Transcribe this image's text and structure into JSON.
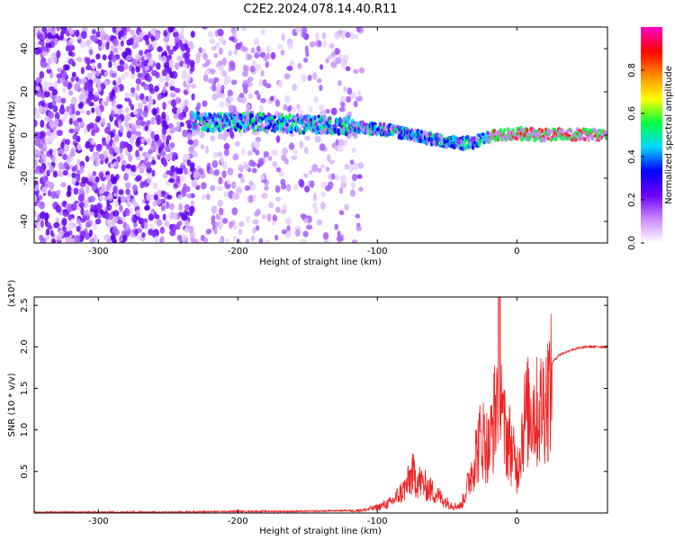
{
  "figure": {
    "title": "C2E2.2024.078.14.40.R11"
  },
  "chart_data": [
    {
      "type": "heatmap",
      "xlabel": "Height of straight line (km)",
      "ylabel": "Frequency (Hz)",
      "xlim": [
        -346,
        65
      ],
      "ylim": [
        -50,
        50
      ],
      "xticks": [
        -300,
        -200,
        -100,
        0
      ],
      "yticks": [
        -40,
        -20,
        0,
        20,
        40
      ],
      "ridge": {
        "x": [
          -230,
          -200,
          -150,
          -120,
          -90,
          -60,
          -40,
          -30,
          -20,
          -10,
          0,
          20,
          65
        ],
        "y": [
          6,
          6,
          5,
          4,
          2,
          -2,
          -4,
          -3,
          -1,
          0,
          0.5,
          0,
          0
        ]
      },
      "colorbar": {
        "label": "Normalized spectral amplitude",
        "range": [
          0.0,
          1.0
        ],
        "ticks": [
          0.0,
          0.2,
          0.4,
          0.6,
          0.8
        ],
        "tick_labels": [
          "0.0",
          "0.2",
          "0.4",
          "0.6",
          "0.8"
        ],
        "colors": [
          "#ffffff",
          "#cc88ff",
          "#6a00ff",
          "#0000ff",
          "#00d8ff",
          "#00ff40",
          "#ffff00",
          "#ff8800",
          "#ff0000",
          "#ff00cc"
        ]
      }
    },
    {
      "type": "line",
      "xlabel": "Height of straight line (km)",
      "ylabel": "SNR (10 * v/v)",
      "y_multiplier": "(x10⁴)",
      "xlim": [
        -346,
        65
      ],
      "ylim": [
        0,
        2.6
      ],
      "xticks": [
        -300,
        -200,
        -100,
        0
      ],
      "yticks": [
        0.5,
        1.0,
        1.5,
        2.0,
        2.5
      ],
      "ytick_labels": [
        "0.5",
        "1.0",
        "1.5",
        "2.0",
        "2.5"
      ],
      "line_color": "#ee2222",
      "x": [
        -346,
        -300,
        -250,
        -200,
        -150,
        -120,
        -110,
        -100,
        -90,
        -80,
        -75,
        -70,
        -60,
        -50,
        -45,
        -40,
        -35,
        -30,
        -25,
        -20,
        -15,
        -12,
        -10,
        -5,
        0,
        5,
        10,
        15,
        20,
        25,
        30,
        40,
        50,
        65
      ],
      "values": [
        0.01,
        0.01,
        0.01,
        0.02,
        0.02,
        0.03,
        0.04,
        0.08,
        0.15,
        0.35,
        0.55,
        0.45,
        0.3,
        0.15,
        0.1,
        0.1,
        0.4,
        0.8,
        1.1,
        0.9,
        1.5,
        2.6,
        1.2,
        1.0,
        0.6,
        1.3,
        1.5,
        1.4,
        1.6,
        1.8,
        1.9,
        1.97,
        2.0,
        2.0
      ]
    }
  ]
}
